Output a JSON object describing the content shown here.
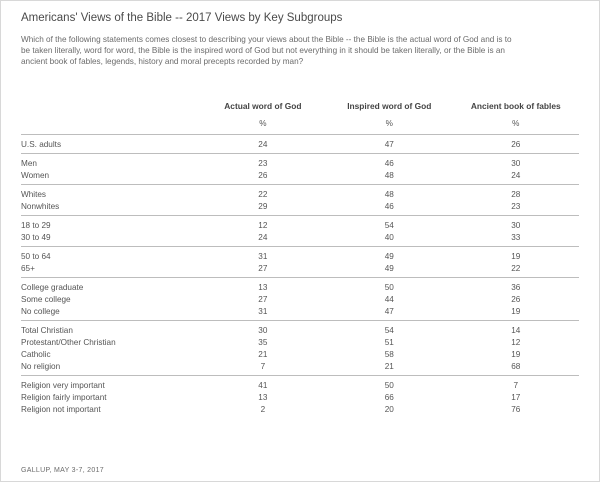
{
  "title": "Americans' Views of the Bible -- 2017 Views by Key Subgroups",
  "question": "Which of the following statements comes closest to describing your views about the Bible -- the Bible is the actual word of God and is to be taken literally, word for word, the Bible is the inspired word of God but not everything in it should be taken literally, or the Bible is an ancient book of fables, legends, history and moral precepts recorded by man?",
  "columns": [
    "Actual word of God",
    "Inspired word of God",
    "Ancient book of fables"
  ],
  "unit": "%",
  "groups": [
    {
      "rows": [
        {
          "label": "U.S. adults",
          "values": [
            "24",
            "47",
            "26"
          ]
        }
      ]
    },
    {
      "rows": [
        {
          "label": "Men",
          "values": [
            "23",
            "46",
            "30"
          ]
        },
        {
          "label": "Women",
          "values": [
            "26",
            "48",
            "24"
          ]
        }
      ]
    },
    {
      "rows": [
        {
          "label": "Whites",
          "values": [
            "22",
            "48",
            "28"
          ]
        },
        {
          "label": "Nonwhites",
          "values": [
            "29",
            "46",
            "23"
          ]
        }
      ]
    },
    {
      "rows": [
        {
          "label": "18 to 29",
          "values": [
            "12",
            "54",
            "30"
          ]
        },
        {
          "label": "30 to 49",
          "values": [
            "24",
            "40",
            "33"
          ]
        }
      ]
    },
    {
      "rows": [
        {
          "label": "50 to 64",
          "values": [
            "31",
            "49",
            "19"
          ]
        },
        {
          "label": "65+",
          "values": [
            "27",
            "49",
            "22"
          ]
        }
      ]
    },
    {
      "rows": [
        {
          "label": "College graduate",
          "values": [
            "13",
            "50",
            "36"
          ]
        },
        {
          "label": "Some college",
          "values": [
            "27",
            "44",
            "26"
          ]
        },
        {
          "label": "No college",
          "values": [
            "31",
            "47",
            "19"
          ]
        }
      ]
    },
    {
      "rows": [
        {
          "label": "Total Christian",
          "values": [
            "30",
            "54",
            "14"
          ]
        },
        {
          "label": "Protestant/Other Christian",
          "values": [
            "35",
            "51",
            "12"
          ]
        },
        {
          "label": "Catholic",
          "values": [
            "21",
            "58",
            "19"
          ]
        },
        {
          "label": "No religion",
          "values": [
            "7",
            "21",
            "68"
          ]
        }
      ]
    },
    {
      "rows": [
        {
          "label": "Religion very important",
          "values": [
            "41",
            "50",
            "7"
          ]
        },
        {
          "label": "Religion fairly important",
          "values": [
            "13",
            "66",
            "17"
          ]
        },
        {
          "label": "Religion not important",
          "values": [
            "2",
            "20",
            "76"
          ]
        }
      ]
    }
  ],
  "source": "GALLUP, MAY 3-7, 2017"
}
